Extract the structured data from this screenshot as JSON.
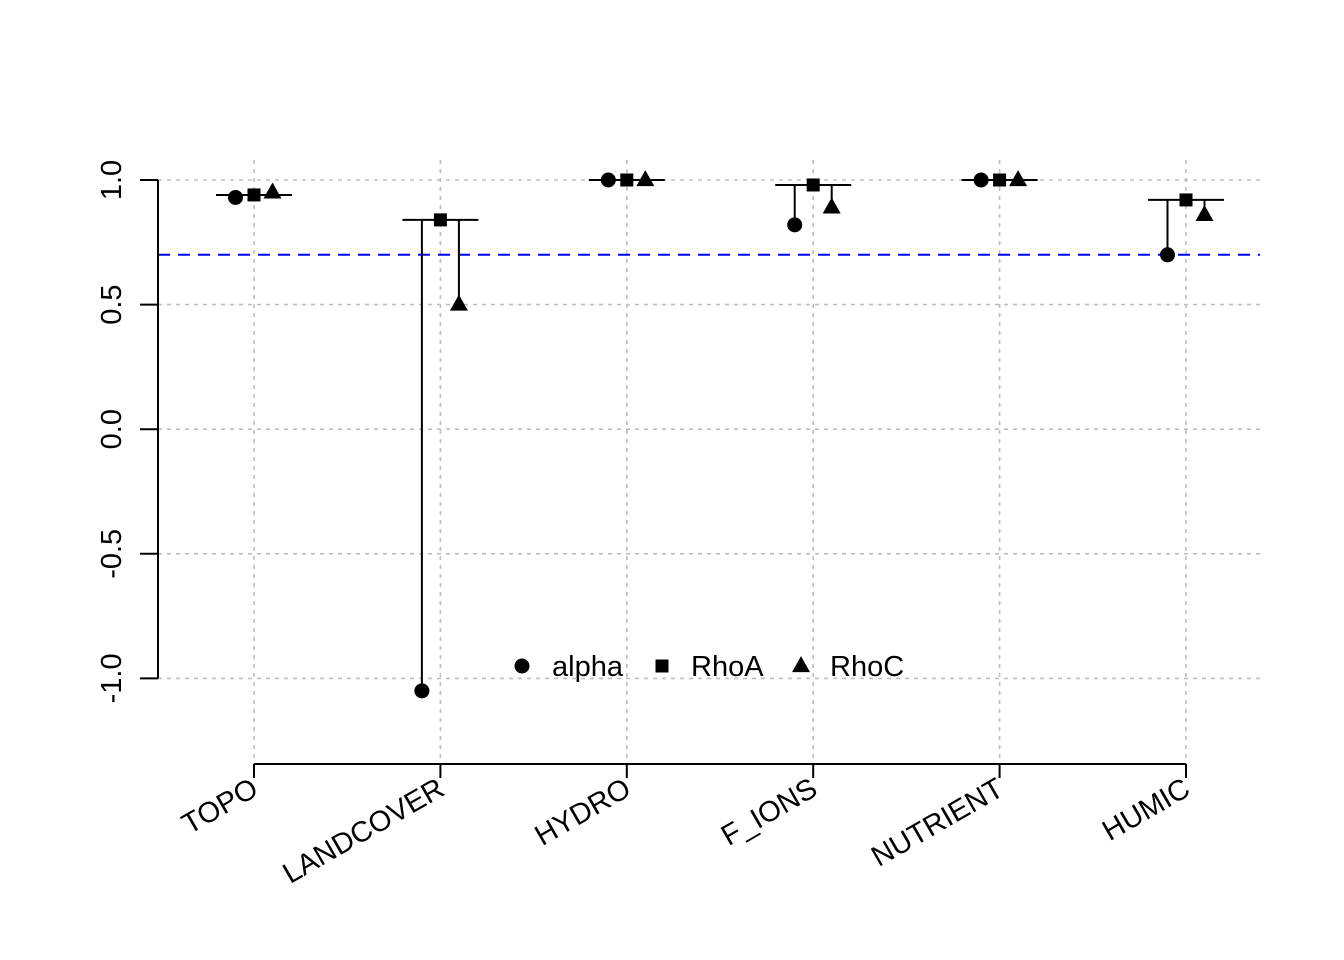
{
  "chart_data": {
    "type": "scatter",
    "title": "",
    "xlabel": "",
    "ylabel": "",
    "categories": [
      "TOPO",
      "LANDCOVER",
      "HYDRO",
      "F_IONS",
      "NUTRIENT",
      "HUMIC"
    ],
    "ylim": [
      -1.35,
      1.0
    ],
    "y_ticks": [
      1.0,
      0.5,
      0.0,
      -0.5,
      -1.0
    ],
    "y_tick_labels": [
      "1.0",
      "0.5",
      "0.0",
      "-0.5",
      "-1.0"
    ],
    "grid": true,
    "reference_line": {
      "y": 0.7,
      "style": "dashed",
      "color": "#0000ff"
    },
    "series": [
      {
        "name": "alpha",
        "marker": "circle",
        "values": [
          0.93,
          -1.05,
          1.0,
          0.82,
          1.0,
          0.7
        ]
      },
      {
        "name": "RhoA",
        "marker": "square",
        "values": [
          0.94,
          0.84,
          1.0,
          0.98,
          1.0,
          0.92
        ]
      },
      {
        "name": "RhoC",
        "marker": "triangle",
        "values": [
          0.95,
          0.5,
          1.0,
          0.89,
          1.0,
          0.86
        ]
      }
    ],
    "range_caps": [
      0.94,
      0.84,
      1.0,
      0.98,
      1.0,
      0.92
    ],
    "legend": {
      "placement": "bottom-center",
      "orientation": "horizontal"
    },
    "colors": {
      "points": "#000000",
      "grid": "#bebebe",
      "reference": "#0000ff"
    }
  }
}
